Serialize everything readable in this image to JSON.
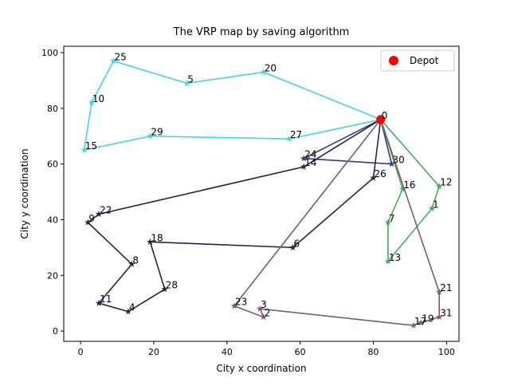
{
  "chart_data": {
    "type": "route-map",
    "title": "The VRP map by saving algorithm",
    "x_label": "City x coordination",
    "y_label": "City y coordination",
    "xlim": [
      -4.6,
      103.4
    ],
    "ylim": [
      -3.7,
      102.3
    ],
    "xticks": [
      0,
      20,
      40,
      60,
      80,
      100
    ],
    "yticks": [
      0,
      20,
      40,
      60,
      80,
      100
    ],
    "legend": {
      "label": "Depot",
      "color": "#ff0000",
      "corner": "upper right"
    },
    "nodes": {
      "labels": [
        "0",
        "1",
        "2",
        "3",
        "4",
        "5",
        "6",
        "7",
        "8",
        "9",
        "10",
        "11",
        "12",
        "13",
        "14",
        "15",
        "16",
        "17",
        "18",
        "19",
        "20",
        "21",
        "22",
        "23",
        "24",
        "25",
        "26",
        "27",
        "28",
        "29",
        "30",
        "31"
      ],
      "x": [
        82,
        96,
        50,
        49,
        13,
        29,
        58,
        84,
        14,
        2,
        3,
        5,
        98,
        84,
        61,
        1,
        88,
        91,
        19,
        93,
        50,
        98,
        5,
        42,
        61,
        9,
        80,
        57,
        23,
        19,
        85,
        98
      ],
      "y": [
        76,
        44,
        5,
        8,
        7,
        89,
        30,
        39,
        24,
        39,
        82,
        10,
        52,
        25,
        59,
        65,
        51,
        2,
        32,
        3,
        93,
        14,
        42,
        9,
        62,
        97,
        55,
        69,
        15,
        70,
        60,
        5
      ]
    },
    "routes": [
      {
        "color": "#40d8e0",
        "stops": [
          0,
          20,
          5,
          25,
          10,
          15,
          29,
          27,
          0
        ]
      },
      {
        "color": "#2f3f7f",
        "stops": [
          0,
          24,
          30,
          0
        ]
      },
      {
        "color": "#2e1f45",
        "stops": [
          0,
          14,
          22,
          9,
          8,
          11,
          4,
          28,
          18,
          6,
          26,
          0
        ]
      },
      {
        "color": "#4aa860",
        "stops": [
          0,
          12,
          1,
          13,
          7,
          16,
          0
        ]
      },
      {
        "color": "#7a5c70",
        "stops": [
          0,
          23,
          2,
          3,
          17,
          19,
          31,
          21,
          0
        ]
      }
    ]
  }
}
